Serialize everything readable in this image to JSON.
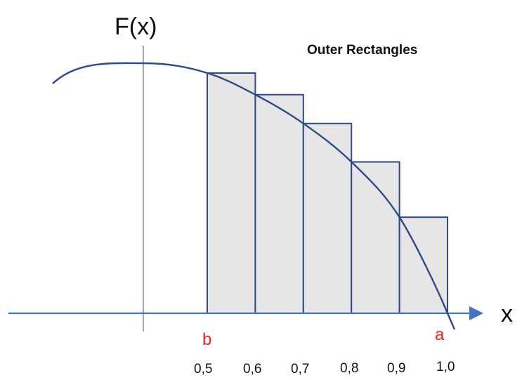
{
  "title": "Outer Rectangles",
  "y_axis_label": "F(x)",
  "x_axis_label": "x",
  "interval_start_label": "b",
  "interval_end_label": "a",
  "tick_labels": [
    "0,5",
    "0,6",
    "0,7",
    "0,8",
    "0,9",
    "1,0"
  ],
  "colors": {
    "curve": "#2f4a8a",
    "rect_fill": "#e6e6e6",
    "rect_stroke": "#2f4a8a",
    "axis": "#4472c4",
    "endpoint_labels": "#e8231f"
  },
  "chart_data": {
    "type": "area",
    "description_of_content": "function F(x) decreasing on [0.5, 1.0], approximated by outer (upper) rectangles of width 0.1",
    "x": [
      0.5,
      0.6,
      0.7,
      0.8,
      0.9,
      1.0
    ],
    "rectangles": [
      {
        "x_start": 0.5,
        "x_end": 0.6,
        "height": 1.0
      },
      {
        "x_start": 0.6,
        "x_end": 0.7,
        "height": 0.91
      },
      {
        "x_start": 0.7,
        "x_end": 0.8,
        "height": 0.79
      },
      {
        "x_start": 0.8,
        "x_end": 0.9,
        "height": 0.63
      },
      {
        "x_start": 0.9,
        "x_end": 1.0,
        "height": 0.4
      }
    ],
    "curve_points": [
      {
        "x": 0.5,
        "y": 1.0
      },
      {
        "x": 0.6,
        "y": 0.91
      },
      {
        "x": 0.7,
        "y": 0.79
      },
      {
        "x": 0.8,
        "y": 0.63
      },
      {
        "x": 0.9,
        "y": 0.4
      },
      {
        "x": 1.0,
        "y": 0.0
      }
    ]
  }
}
